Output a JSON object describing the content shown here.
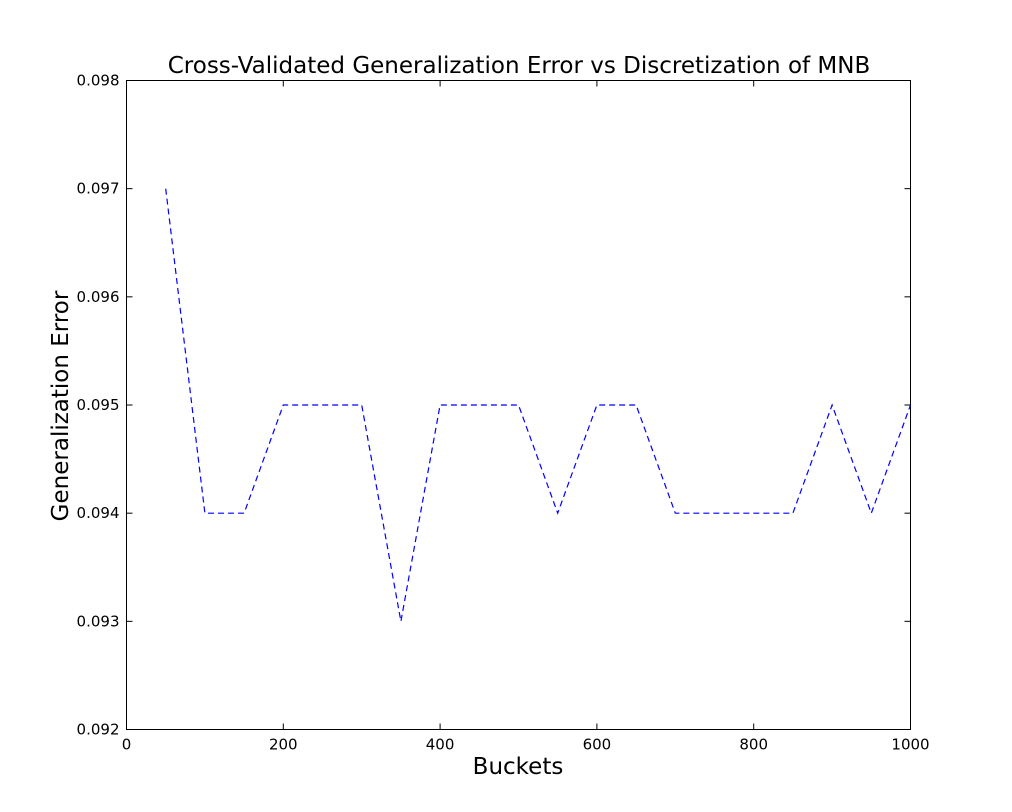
{
  "chart_data": {
    "type": "line",
    "title": "Cross-Validated Generalization Error vs Discretization of MNB",
    "xlabel": "Buckets",
    "ylabel": "Generalization Error",
    "xlim": [
      0,
      1000
    ],
    "ylim": [
      0.092,
      0.098
    ],
    "xticks": [
      "0",
      "200",
      "400",
      "600",
      "800",
      "1000"
    ],
    "yticks": [
      "0.092",
      "0.093",
      "0.094",
      "0.095",
      "0.096",
      "0.097",
      "0.098"
    ],
    "grid": false,
    "series": [
      {
        "color": "#0000ff",
        "linestyle": "dashed",
        "x": [
          50,
          100,
          150,
          200,
          250,
          300,
          350,
          400,
          450,
          500,
          550,
          600,
          650,
          700,
          750,
          800,
          850,
          900,
          950,
          1000
        ],
        "y": [
          0.097,
          0.094,
          0.094,
          0.095,
          0.095,
          0.095,
          0.093,
          0.095,
          0.095,
          0.095,
          0.094,
          0.095,
          0.095,
          0.094,
          0.094,
          0.094,
          0.094,
          0.095,
          0.094,
          0.095
        ]
      }
    ]
  }
}
